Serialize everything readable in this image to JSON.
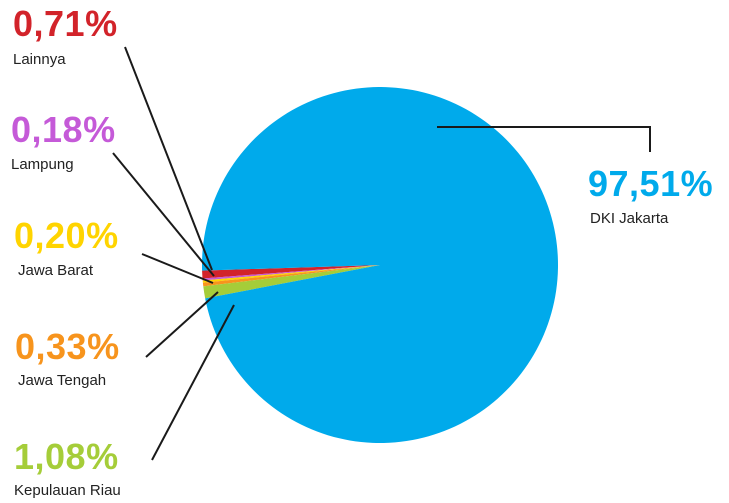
{
  "chart_data": {
    "type": "pie",
    "slices": [
      {
        "label": "DKI Jakarta",
        "value": 97.51,
        "value_label": "97,51%",
        "color": "#00aaeb"
      },
      {
        "label": "Kepulauan Riau",
        "value": 1.08,
        "value_label": "1,08%",
        "color": "#a5cd39"
      },
      {
        "label": "Jawa Tengah",
        "value": 0.33,
        "value_label": "0,33%",
        "color": "#f7941d"
      },
      {
        "label": "Jawa Barat",
        "value": 0.2,
        "value_label": "0,20%",
        "color": "#ffd400"
      },
      {
        "label": "Lampung",
        "value": 0.18,
        "value_label": "0,18%",
        "color": "#c55ad8"
      },
      {
        "label": "Lainnya",
        "value": 0.71,
        "value_label": "0,71%",
        "color": "#d2232a"
      }
    ],
    "legend": "none",
    "leader_line_color": "#1a1a1a"
  }
}
